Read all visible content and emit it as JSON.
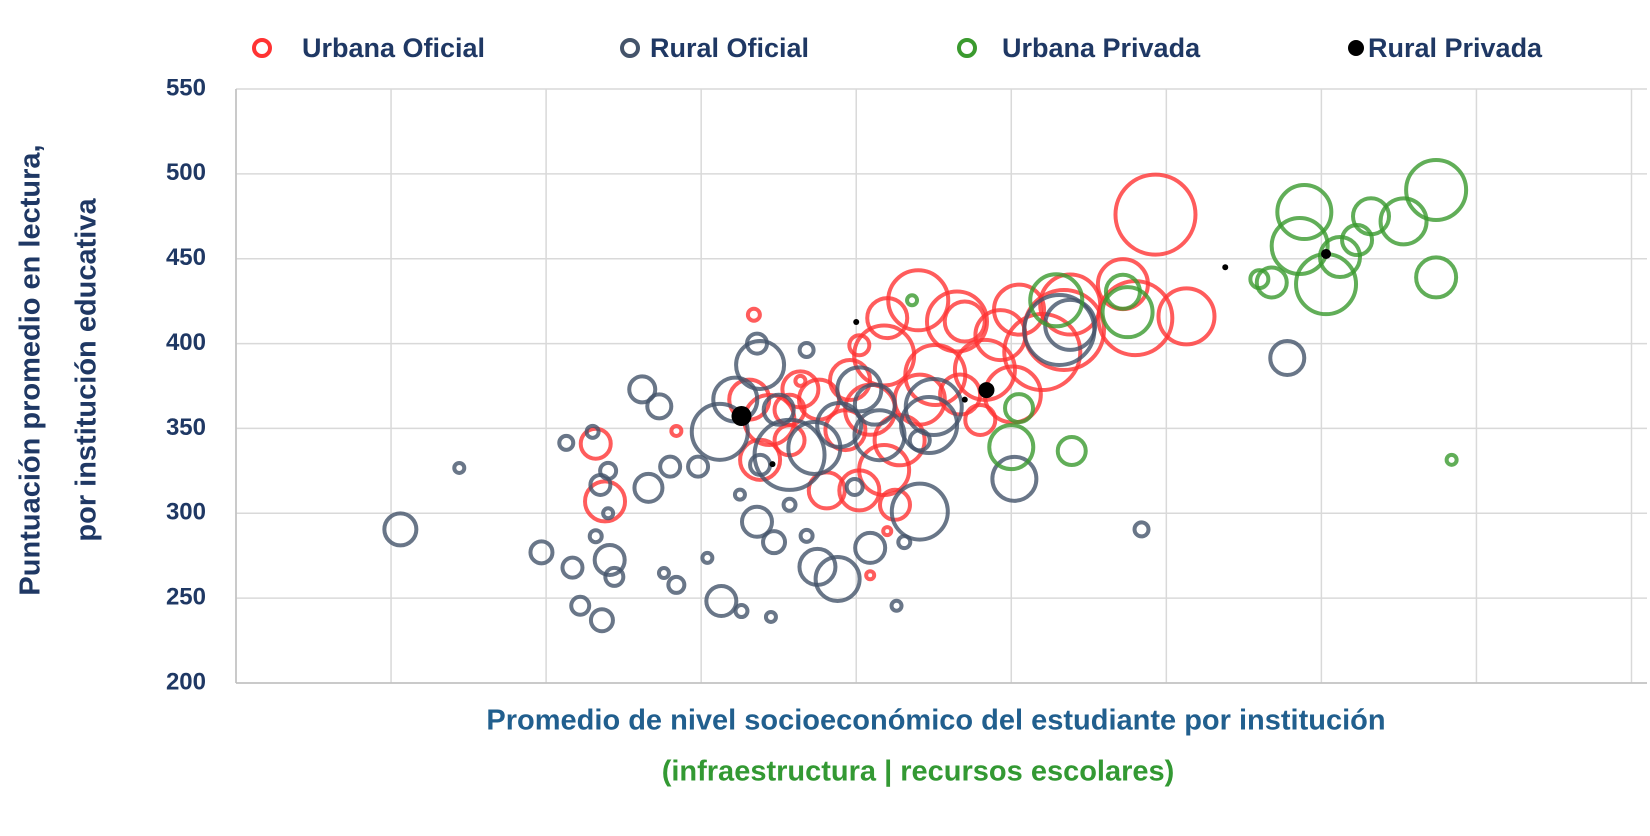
{
  "chart_data": {
    "type": "scatter",
    "y_label": [
      "Puntuación promedio en lectura,",
      "por institución educativa"
    ],
    "x_label": "Promedio de nivel socioeconómico del estudiante por institución",
    "x_label_sub": "(infraestructura | recursos escolares)",
    "ylim": [
      200,
      550
    ],
    "yticks": [
      200,
      250,
      300,
      350,
      400,
      450,
      500,
      550
    ],
    "xlim": [
      0,
      9.1
    ],
    "xticks": [
      0,
      1,
      2,
      3,
      4,
      5,
      6,
      7,
      8,
      9
    ],
    "grid": true,
    "series": [
      {
        "name": "Urbana Oficial",
        "color": "#ff3333",
        "x": [
          5.93,
          6.13,
          5.8,
          5.72,
          5.38,
          5.34,
          5.2,
          5.05,
          4.93,
          4.83,
          5.01,
          4.7,
          4.65,
          4.4,
          4.2,
          4.18,
          4.51,
          4.67,
          4.8,
          4.41,
          4.28,
          4.02,
          3.96,
          4.09,
          4.18,
          4.02,
          4.25,
          3.93,
          3.76,
          3.64,
          3.57,
          3.44,
          3.38,
          3.31,
          3.57,
          3.81,
          2.38,
          2.32,
          3.34,
          2.84,
          4.09,
          4.2,
          3.64
        ],
        "values": [
          476,
          416,
          415,
          435,
          423,
          408,
          395,
          420,
          405,
          384.5,
          370,
          413,
          413,
          425.5,
          415,
          393,
          381.5,
          370,
          355,
          367,
          343,
          399,
          378.5,
          361,
          325.5,
          313.5,
          305,
          349,
          367,
          373,
          361,
          355,
          331.5,
          367,
          343,
          313.5,
          307,
          341,
          417,
          348.5,
          263.5,
          289.5,
          378
        ],
        "sizes": [
          40,
          28,
          37,
          25,
          30,
          40,
          38,
          25,
          25,
          30,
          28,
          20,
          30,
          30,
          20,
          30,
          30,
          20,
          15,
          25,
          25,
          10,
          20,
          25,
          25,
          20,
          15,
          20,
          20,
          18,
          15,
          25,
          20,
          20,
          15,
          18,
          20,
          15,
          6,
          5,
          4,
          4,
          5
        ]
      },
      {
        "name": "Rural Oficial",
        "color": "#44546a",
        "x": [
          1.06,
          1.44,
          1.97,
          2.17,
          2.22,
          2.36,
          2.41,
          2.44,
          2.32,
          2.4,
          2.35,
          2.4,
          2.13,
          2.3,
          2.62,
          2.73,
          2.66,
          2.8,
          2.76,
          2.84,
          3.04,
          3.13,
          3.26,
          3.45,
          3.36,
          3.47,
          3.68,
          3.75,
          3.88,
          4.09,
          4.26,
          4.31,
          4.41,
          5.02,
          5.84,
          6.78,
          5.31,
          5.38,
          3.36,
          3.38,
          3.68,
          3.12,
          3.22,
          3.5,
          3.57,
          3.73,
          3.89,
          4.02,
          4.12,
          4.15,
          4.47,
          4.5,
          3.25,
          3.38,
          2.98,
          3.99,
          3.57,
          4.41
        ],
        "values": [
          290.5,
          326.7,
          277,
          268,
          245.5,
          237,
          272.5,
          262.5,
          286.5,
          300,
          316.7,
          325,
          341.5,
          348,
          373,
          363,
          315,
          327.5,
          264.8,
          257.8,
          273.7,
          248.3,
          242.4,
          238.9,
          295,
          283,
          286.7,
          268.4,
          261.3,
          279.6,
          245.5,
          283,
          301,
          320.3,
          290.5,
          391.5,
          408,
          411,
          400,
          387.4,
          396.2,
          348,
          367,
          361,
          334.4,
          338.5,
          352,
          373,
          364,
          346,
          352,
          362.6,
          311,
          328.5,
          327.5,
          315.5,
          305,
          343
        ],
        "sizes": [
          16,
          5,
          11,
          10,
          9,
          11,
          15,
          9,
          6,
          5,
          10,
          8,
          7,
          6,
          13,
          12,
          14,
          10,
          5,
          8,
          5,
          15,
          6,
          5,
          15,
          11,
          6,
          18,
          22,
          15,
          5,
          6,
          28,
          22,
          7,
          17,
          35,
          25,
          10,
          24,
          7,
          28,
          22,
          15,
          35,
          26,
          22,
          22,
          20,
          25,
          28,
          28,
          5,
          10,
          10,
          8,
          6,
          10
        ]
      },
      {
        "name": "Urbana Privada",
        "color": "#3a9a2e",
        "x": [
          7.74,
          6.89,
          7.32,
          7.53,
          7.23,
          6.86,
          7.12,
          7.03,
          6.68,
          6.6,
          7.74,
          7.84,
          5.72,
          5.75,
          5.29,
          4.36,
          5.05,
          5.0,
          5.39
        ],
        "values": [
          490.5,
          477.5,
          475,
          472,
          461,
          457.5,
          451,
          435,
          436,
          438,
          439,
          331.5,
          430.5,
          418.5,
          425.5,
          425.5,
          362,
          339,
          336.7
        ],
        "sizes": [
          30,
          27,
          18,
          23,
          15,
          28,
          20,
          30,
          15,
          9,
          20,
          5,
          17,
          25,
          26,
          5,
          14,
          22,
          14
        ]
      },
      {
        "name": "Rural Privada",
        "color": "#000000",
        "filled": true,
        "x": [
          3.26,
          4.84,
          7.03,
          6.38,
          4.0,
          3.46,
          4.7
        ],
        "values": [
          357.3,
          372.6,
          452.8,
          445,
          412.7,
          329,
          367
        ],
        "sizes": [
          10,
          8,
          5,
          3,
          3,
          3,
          3
        ]
      }
    ]
  }
}
